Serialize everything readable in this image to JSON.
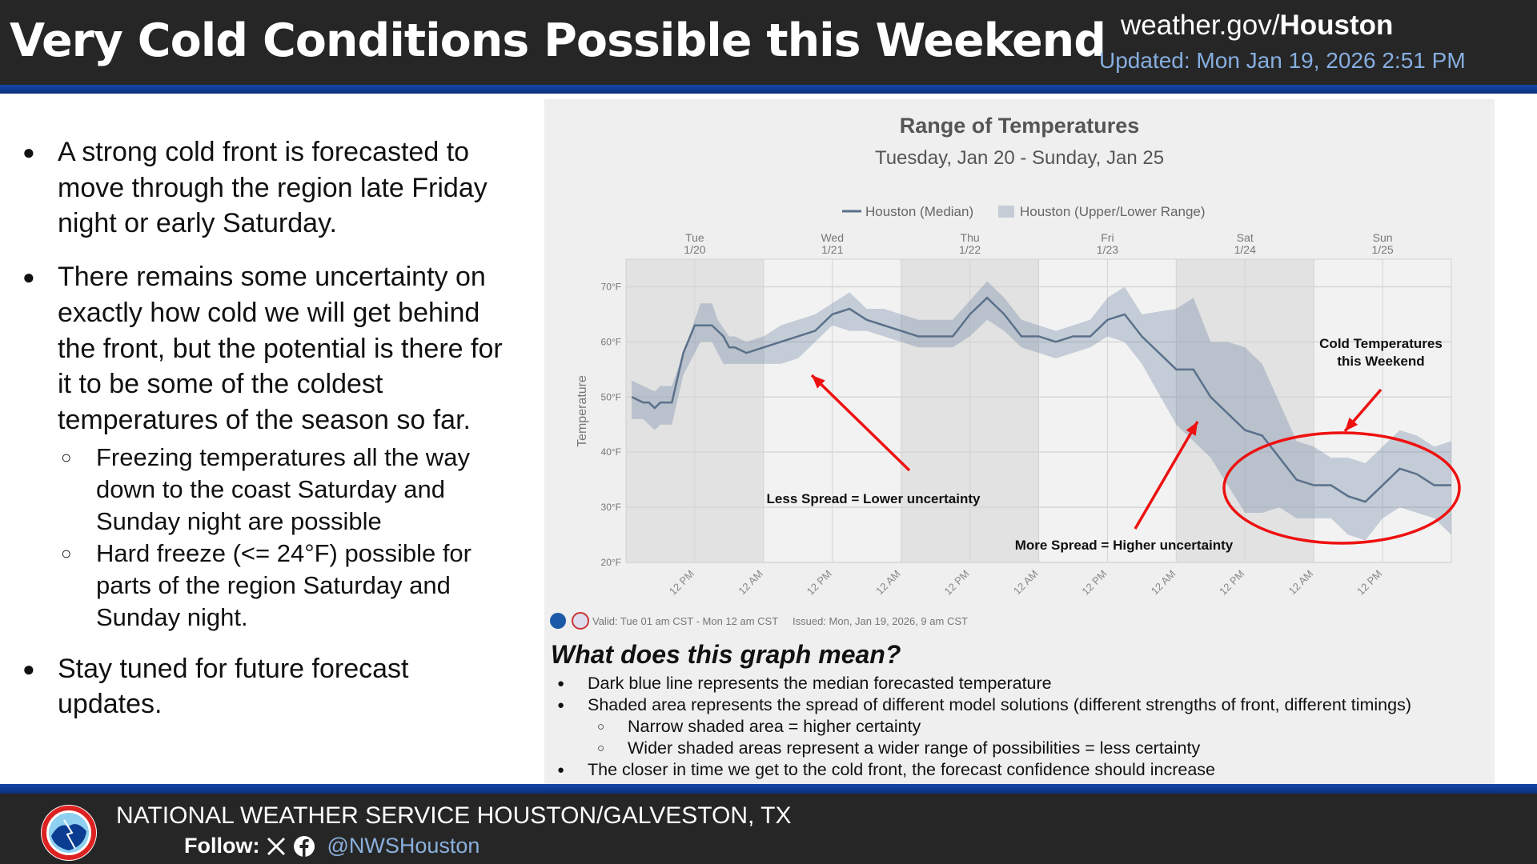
{
  "header": {
    "title": "Very Cold Conditions Possible this Weekend",
    "site_prefix": "weather.gov/",
    "site_office": "Houston",
    "updated": "Updated: Mon Jan 19, 2026 2:51 PM"
  },
  "bullets": [
    {
      "text": "A strong cold front is forecasted to move through the region late Friday night or early Saturday.",
      "subs": []
    },
    {
      "text": "There remains some uncertainty on exactly how cold we will get behind the front, but the potential is there for it to be some of the coldest temperatures of the season so far.",
      "subs": [
        "Freezing temperatures all the way down to the coast Saturday and Sunday night are possible",
        "Hard freeze (<= 24°F) possible for parts of the region Saturday and Sunday night."
      ]
    },
    {
      "text": "Stay tuned for future forecast updates.",
      "subs": []
    }
  ],
  "chart_data": {
    "type": "area",
    "title": "Range of Temperatures",
    "subtitle": "Tuesday, Jan 20 - Sunday, Jan 25",
    "ylabel": "Temperature",
    "ylim": [
      20,
      75
    ],
    "yticks": [
      "20°F",
      "30°F",
      "40°F",
      "50°F",
      "60°F",
      "70°F"
    ],
    "xlim": [
      "2026-01-20T00:00",
      "2026-01-26T00:00"
    ],
    "day_labels": [
      [
        "Tue",
        "1/20"
      ],
      [
        "Wed",
        "1/21"
      ],
      [
        "Thu",
        "1/22"
      ],
      [
        "Fri",
        "1/23"
      ],
      [
        "Sat",
        "1/24"
      ],
      [
        "Sun",
        "1/25"
      ]
    ],
    "xtick_labels": [
      "12 PM",
      "12 AM",
      "12 PM",
      "12 AM",
      "12 PM",
      "12 AM",
      "12 PM",
      "12 AM",
      "12 PM",
      "12 AM",
      "12 PM"
    ],
    "grid": true,
    "legend_position": "top",
    "series": [
      {
        "name": "Houston (Median)",
        "color": "#5b708a",
        "points": [
          [
            "2026-01-20T01:00",
            50
          ],
          [
            "2026-01-20T03:00",
            49
          ],
          [
            "2026-01-20T04:00",
            49
          ],
          [
            "2026-01-20T05:00",
            48
          ],
          [
            "2026-01-20T06:00",
            49
          ],
          [
            "2026-01-20T08:00",
            49
          ],
          [
            "2026-01-20T10:00",
            58
          ],
          [
            "2026-01-20T12:00",
            63
          ],
          [
            "2026-01-20T15:00",
            63
          ],
          [
            "2026-01-20T17:00",
            61
          ],
          [
            "2026-01-20T18:00",
            59
          ],
          [
            "2026-01-20T19:00",
            59
          ],
          [
            "2026-01-20T21:00",
            58
          ],
          [
            "2026-01-21T09:00",
            62
          ],
          [
            "2026-01-21T12:00",
            65
          ],
          [
            "2026-01-21T15:00",
            66
          ],
          [
            "2026-01-21T18:00",
            64
          ],
          [
            "2026-01-22T03:00",
            61
          ],
          [
            "2026-01-22T09:00",
            61
          ],
          [
            "2026-01-22T12:00",
            65
          ],
          [
            "2026-01-22T15:00",
            68
          ],
          [
            "2026-01-22T18:00",
            65
          ],
          [
            "2026-01-22T21:00",
            61
          ],
          [
            "2026-01-23T00:00",
            61
          ],
          [
            "2026-01-23T03:00",
            60
          ],
          [
            "2026-01-23T06:00",
            61
          ],
          [
            "2026-01-23T09:00",
            61
          ],
          [
            "2026-01-23T12:00",
            64
          ],
          [
            "2026-01-23T15:00",
            65
          ],
          [
            "2026-01-23T18:00",
            61
          ],
          [
            "2026-01-24T00:00",
            55
          ],
          [
            "2026-01-24T03:00",
            55
          ],
          [
            "2026-01-24T06:00",
            50
          ],
          [
            "2026-01-24T12:00",
            44
          ],
          [
            "2026-01-24T15:00",
            43
          ],
          [
            "2026-01-24T21:00",
            35
          ],
          [
            "2026-01-25T00:00",
            34
          ],
          [
            "2026-01-25T03:00",
            34
          ],
          [
            "2026-01-25T06:00",
            32
          ],
          [
            "2026-01-25T09:00",
            31
          ],
          [
            "2026-01-25T15:00",
            37
          ],
          [
            "2026-01-25T18:00",
            36
          ],
          [
            "2026-01-25T21:00",
            34
          ],
          [
            "2026-01-26T00:00",
            34
          ]
        ]
      },
      {
        "name": "Houston (Upper/Lower Range)",
        "color": "#b9c3d0",
        "upper": [
          [
            "2026-01-20T01:00",
            53
          ],
          [
            "2026-01-20T03:00",
            52
          ],
          [
            "2026-01-20T05:00",
            51
          ],
          [
            "2026-01-20T06:00",
            52
          ],
          [
            "2026-01-20T08:00",
            52
          ],
          [
            "2026-01-20T10:00",
            58
          ],
          [
            "2026-01-20T13:00",
            67
          ],
          [
            "2026-01-20T15:00",
            67
          ],
          [
            "2026-01-20T16:00",
            64
          ],
          [
            "2026-01-20T18:00",
            61
          ],
          [
            "2026-01-20T19:00",
            61
          ],
          [
            "2026-01-20T21:00",
            60
          ],
          [
            "2026-01-21T00:00",
            61
          ],
          [
            "2026-01-21T03:00",
            63
          ],
          [
            "2026-01-21T09:00",
            65
          ],
          [
            "2026-01-21T15:00",
            69
          ],
          [
            "2026-01-21T18:00",
            66
          ],
          [
            "2026-01-21T21:00",
            66
          ],
          [
            "2026-01-22T03:00",
            64
          ],
          [
            "2026-01-22T09:00",
            64
          ],
          [
            "2026-01-22T15:00",
            71
          ],
          [
            "2026-01-22T18:00",
            68
          ],
          [
            "2026-01-22T21:00",
            64
          ],
          [
            "2026-01-23T03:00",
            62
          ],
          [
            "2026-01-23T09:00",
            64
          ],
          [
            "2026-01-23T12:00",
            68
          ],
          [
            "2026-01-23T15:00",
            70
          ],
          [
            "2026-01-23T18:00",
            65
          ],
          [
            "2026-01-24T00:00",
            66
          ],
          [
            "2026-01-24T03:00",
            68
          ],
          [
            "2026-01-24T06:00",
            60
          ],
          [
            "2026-01-24T09:00",
            60
          ],
          [
            "2026-01-24T12:00",
            59
          ],
          [
            "2026-01-24T15:00",
            56
          ],
          [
            "2026-01-24T21:00",
            42
          ],
          [
            "2026-01-25T00:00",
            41
          ],
          [
            "2026-01-25T03:00",
            39
          ],
          [
            "2026-01-25T06:00",
            39
          ],
          [
            "2026-01-25T09:00",
            38
          ],
          [
            "2026-01-25T15:00",
            44
          ],
          [
            "2026-01-25T18:00",
            43
          ],
          [
            "2026-01-25T21:00",
            41
          ],
          [
            "2026-01-26T00:00",
            42
          ]
        ],
        "lower": [
          [
            "2026-01-20T01:00",
            46
          ],
          [
            "2026-01-20T03:00",
            46
          ],
          [
            "2026-01-20T04:00",
            45
          ],
          [
            "2026-01-20T05:00",
            44
          ],
          [
            "2026-01-20T06:00",
            45
          ],
          [
            "2026-01-20T08:00",
            45
          ],
          [
            "2026-01-20T10:00",
            54
          ],
          [
            "2026-01-20T13:00",
            60
          ],
          [
            "2026-01-20T15:00",
            60
          ],
          [
            "2026-01-20T17:00",
            56
          ],
          [
            "2026-01-20T18:00",
            56
          ],
          [
            "2026-01-21T03:00",
            56
          ],
          [
            "2026-01-21T06:00",
            57
          ],
          [
            "2026-01-21T12:00",
            63
          ],
          [
            "2026-01-21T15:00",
            62
          ],
          [
            "2026-01-21T18:00",
            62
          ],
          [
            "2026-01-22T03:00",
            59
          ],
          [
            "2026-01-22T09:00",
            59
          ],
          [
            "2026-01-22T12:00",
            61
          ],
          [
            "2026-01-22T15:00",
            64
          ],
          [
            "2026-01-22T18:00",
            62
          ],
          [
            "2026-01-22T21:00",
            59
          ],
          [
            "2026-01-23T03:00",
            57
          ],
          [
            "2026-01-23T09:00",
            59
          ],
          [
            "2026-01-23T12:00",
            61
          ],
          [
            "2026-01-23T15:00",
            60
          ],
          [
            "2026-01-23T18:00",
            56
          ],
          [
            "2026-01-24T00:00",
            45
          ],
          [
            "2026-01-24T06:00",
            39
          ],
          [
            "2026-01-24T12:00",
            29
          ],
          [
            "2026-01-24T15:00",
            29
          ],
          [
            "2026-01-24T18:00",
            30
          ],
          [
            "2026-01-24T21:00",
            28
          ],
          [
            "2026-01-25T00:00",
            28
          ],
          [
            "2026-01-25T03:00",
            28
          ],
          [
            "2026-01-25T06:00",
            25
          ],
          [
            "2026-01-25T09:00",
            24
          ],
          [
            "2026-01-25T12:00",
            28
          ],
          [
            "2026-01-25T15:00",
            30
          ],
          [
            "2026-01-25T18:00",
            29
          ],
          [
            "2026-01-25T21:00",
            28
          ],
          [
            "2026-01-26T00:00",
            25
          ]
        ]
      }
    ],
    "annotations": [
      "Less Spread = Lower uncertainty",
      "More Spread = Higher uncertainty",
      "Cold Temperatures",
      "this Weekend"
    ],
    "footnote_valid": "Valid: Tue 01 am CST - Mon 12 am CST",
    "footnote_issued": "Issued: Mon, Jan 19, 2026, 9 am CST",
    "annotation_color": "#ee1111"
  },
  "explain": {
    "title": "What does this graph mean?",
    "items": [
      "Dark blue line represents the median forecasted temperature",
      "Shaded area represents the spread of different model solutions (different strengths of front, different timings)",
      "Narrow shaded area = higher certainty",
      "Wider shaded areas represent a wider range of possibilities = less certainty",
      "The closer in time we get to the cold front, the forecast confidence should increase"
    ]
  },
  "footer": {
    "office": "NATIONAL WEATHER SERVICE HOUSTON/GALVESTON, TX",
    "follow_label": "Follow:",
    "handle": "@NWSHouston",
    "icons": [
      "x-icon",
      "facebook-icon"
    ],
    "logo": "NATIONAL WEATHER SERVICE"
  }
}
